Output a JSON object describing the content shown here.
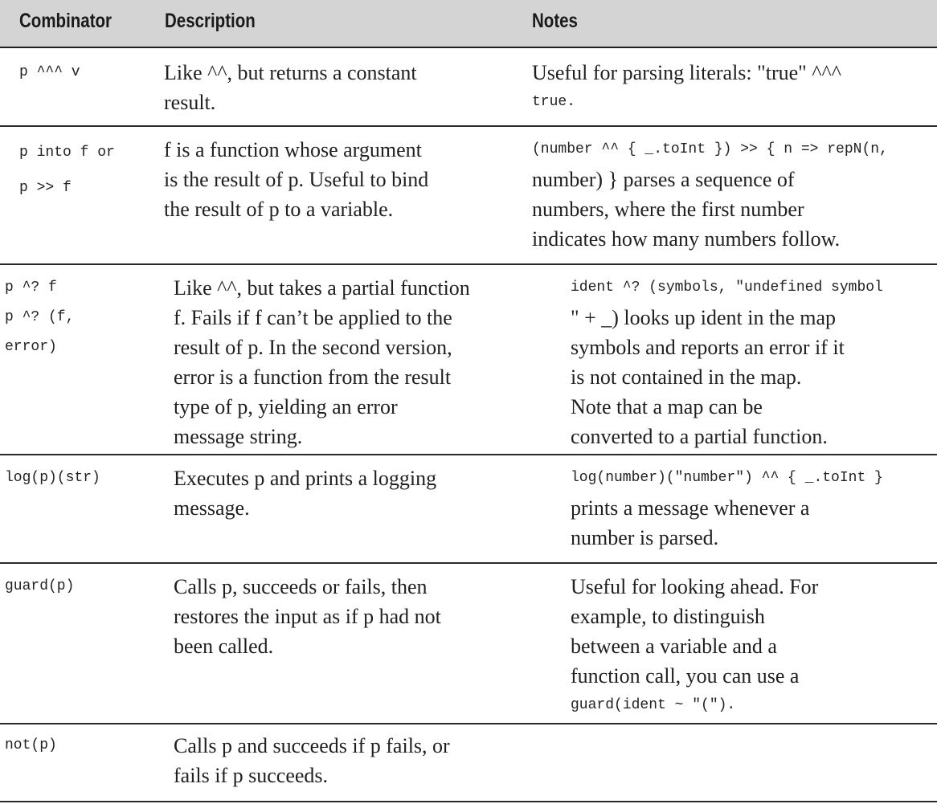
{
  "header": {
    "combinator": "Combinator",
    "description": "Description",
    "notes": "Notes"
  },
  "rows": [
    {
      "combinator": [
        "p ^^^ v"
      ],
      "description": [
        "Like ^^, but returns a constant",
        "result."
      ],
      "notes": [
        "Useful for parsing literals: \"true\" ^^^",
        "true."
      ]
    },
    {
      "combinator": [
        "p into f or",
        "p >> f"
      ],
      "description": [
        "f is a function whose argument",
        "is the result of p. Useful to bind",
        "the result of p to a variable."
      ],
      "notes": [
        "(number ^^ { _.toInt }) >> { n => repN(n,",
        "number) } parses a sequence of",
        "numbers, where the first number",
        "indicates how many numbers follow."
      ]
    },
    {
      "combinator": [
        "p ^? f",
        "p ^? (f,",
        "error)"
      ],
      "description": [
        "Like ^^, but takes a partial function",
        "f. Fails if f can’t be applied to the",
        "result of p. In the second version,",
        "error is a function from the result",
        "type of p, yielding an error",
        "message string."
      ],
      "notes": [
        "ident ^? (symbols, \"undefined symbol",
        "\" + _) looks up ident in the map",
        "symbols and reports an error if it",
        "is not contained in the map.",
        "Note that a map can be",
        "converted to a partial function."
      ]
    },
    {
      "combinator": [
        "log(p)(str)"
      ],
      "description": [
        "Executes p and prints a logging",
        "message."
      ],
      "notes": [
        "log(number)(\"number\") ^^ { _.toInt }",
        "prints a message whenever a",
        "number is parsed."
      ]
    },
    {
      "combinator": [
        "guard(p)"
      ],
      "description": [
        "Calls p, succeeds or fails, then",
        "restores the input as if p had not",
        "been called."
      ],
      "notes": [
        "Useful for looking ahead. For",
        "example, to distinguish",
        "between a variable and a",
        "function call, you can use a",
        "guard(ident ~ \"(\")."
      ]
    },
    {
      "combinator": [
        "not(p)"
      ],
      "description": [
        "Calls p and succeeds if p fails, or",
        "fails if p succeeds."
      ],
      "notes": []
    }
  ]
}
